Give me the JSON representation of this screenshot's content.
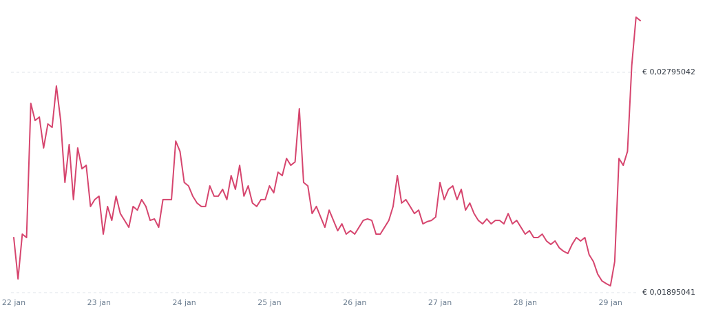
{
  "chart_data": {
    "type": "line",
    "color": "#d6456e",
    "grid": true,
    "values": [
      0.0212,
      0.01951,
      0.02134,
      0.0212,
      0.02668,
      0.02598,
      0.02612,
      0.02486,
      0.02584,
      0.0257,
      0.02739,
      0.02598,
      0.02345,
      0.025,
      0.02275,
      0.02486,
      0.02401,
      0.02415,
      0.02247,
      0.02275,
      0.02289,
      0.02134,
      0.02247,
      0.0219,
      0.02289,
      0.02218,
      0.0219,
      0.02162,
      0.02247,
      0.02232,
      0.02275,
      0.02247,
      0.0219,
      0.02196,
      0.02162,
      0.02275,
      0.02275,
      0.02275,
      0.02514,
      0.02472,
      0.02345,
      0.02331,
      0.02289,
      0.02261,
      0.02247,
      0.02247,
      0.02331,
      0.02289,
      0.02289,
      0.02317,
      0.02275,
      0.02373,
      0.02317,
      0.02415,
      0.02289,
      0.02331,
      0.02261,
      0.02247,
      0.02275,
      0.02275,
      0.02331,
      0.02303,
      0.02387,
      0.02373,
      0.02443,
      0.02415,
      0.02429,
      0.02646,
      0.02345,
      0.02331,
      0.02218,
      0.02247,
      0.02204,
      0.02162,
      0.02232,
      0.0219,
      0.02148,
      0.02176,
      0.02134,
      0.02148,
      0.02134,
      0.02162,
      0.0219,
      0.02196,
      0.0219,
      0.02134,
      0.02134,
      0.02162,
      0.0219,
      0.02247,
      0.02373,
      0.02261,
      0.02275,
      0.02247,
      0.02218,
      0.02232,
      0.02176,
      0.02185,
      0.0219,
      0.02204,
      0.02345,
      0.02275,
      0.02317,
      0.02331,
      0.02275,
      0.02317,
      0.02232,
      0.02261,
      0.02218,
      0.0219,
      0.02176,
      0.02196,
      0.02176,
      0.0219,
      0.0219,
      0.02176,
      0.02218,
      0.02176,
      0.0219,
      0.02162,
      0.02134,
      0.02148,
      0.0212,
      0.0212,
      0.02134,
      0.02106,
      0.02092,
      0.02106,
      0.02078,
      0.02064,
      0.02055,
      0.02092,
      0.0212,
      0.02106,
      0.0212,
      0.0205,
      0.02022,
      0.01971,
      0.01943,
      0.01932,
      0.01923,
      0.02022,
      0.02443,
      0.02415,
      0.02472,
      0.02823,
      0.0302,
      0.03006
    ],
    "xlim": [
      0,
      147
    ],
    "xticks": [
      {
        "value": 0,
        "label": "22 jan"
      },
      {
        "value": 20,
        "label": "23 jan"
      },
      {
        "value": 40,
        "label": "24 jan"
      },
      {
        "value": 60,
        "label": "25 jan"
      },
      {
        "value": 80,
        "label": "26 jan"
      },
      {
        "value": 100,
        "label": "27 jan"
      },
      {
        "value": 120,
        "label": "28 jan"
      },
      {
        "value": 140,
        "label": "29 jan"
      }
    ],
    "ylim": [
      0.01881,
      0.03062
    ],
    "yticks": [
      {
        "value": 0.01895041,
        "label": "€ 0,01895041"
      },
      {
        "value": 0.02795042,
        "label": "€ 0,02795042"
      }
    ]
  }
}
